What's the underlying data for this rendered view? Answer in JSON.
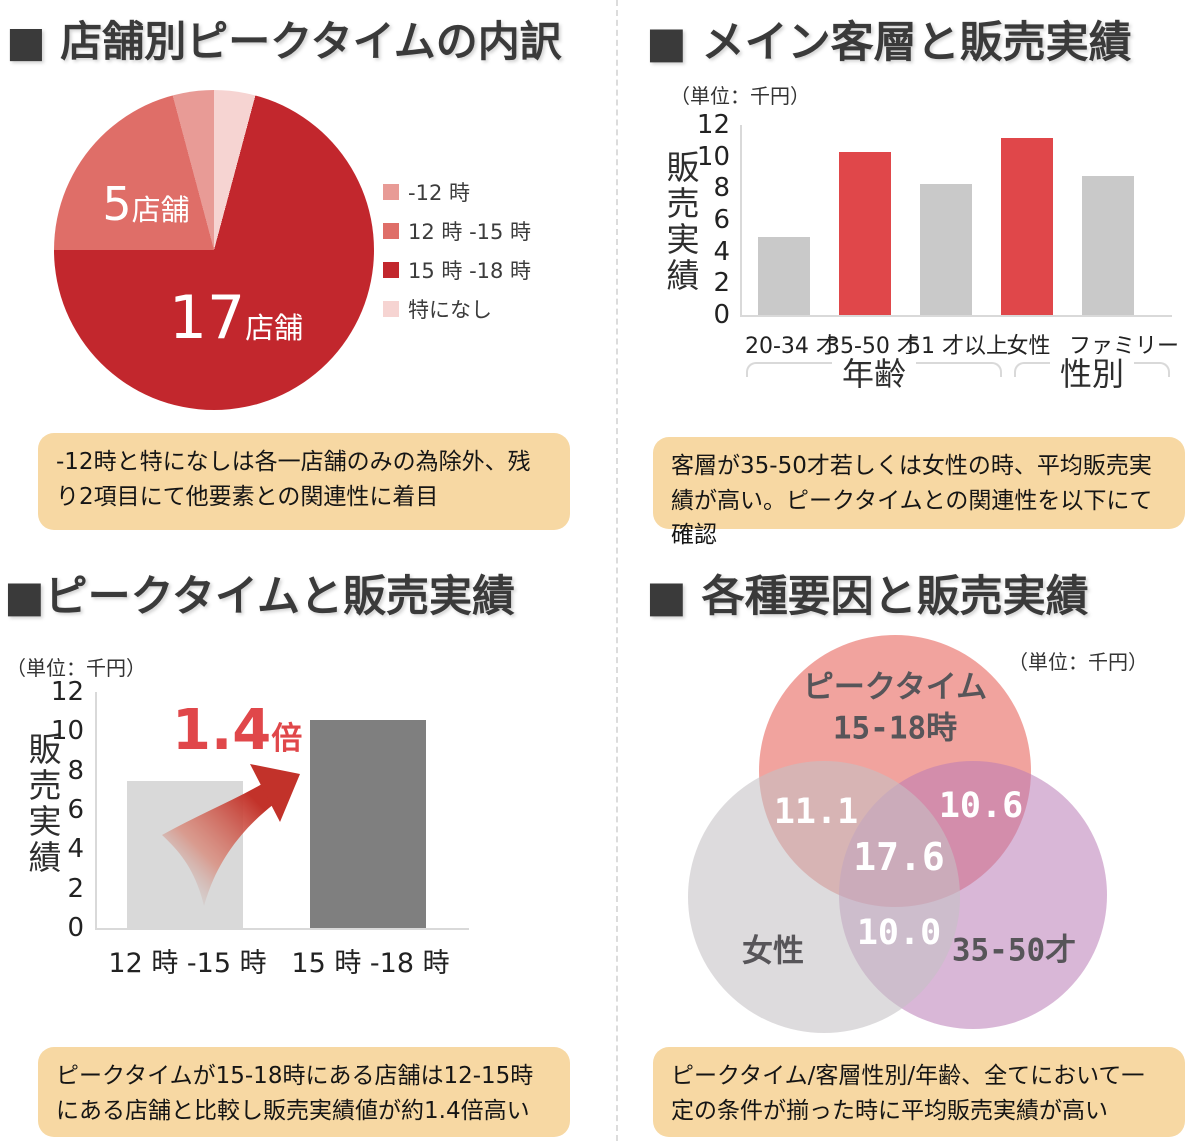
{
  "page": {
    "background": "#ffffff",
    "note_bg": "#f7d8a3",
    "divider_color": "#dcdcdc"
  },
  "chart_data": [
    {
      "type": "pie",
      "title": "■ 店舗別ピークタイムの内訳",
      "slices": [
        {
          "label": "-12 時",
          "value": 1,
          "color": "#e89b96"
        },
        {
          "label": "12 時 -15 時",
          "value": 5,
          "color": "#df6e68"
        },
        {
          "label": "15 時 -18 時",
          "value": 17,
          "color": "#c2272d"
        },
        {
          "label": "特になし",
          "value": 1,
          "color": "#f6d4d2"
        }
      ],
      "legend_position": "right",
      "callouts": [
        {
          "num": "5",
          "suffix": "店舗"
        },
        {
          "num": "17",
          "suffix": "店舗"
        }
      ],
      "note": "-12時と特になしは各一店舗のみの為除外、残り2項目にて他要素との関連性に着目"
    },
    {
      "type": "bar",
      "title": "■ メイン客層と販売実績",
      "unit": "（単位：千円）",
      "ylabel": "販売実績",
      "ylim": [
        0,
        12
      ],
      "yticks": [
        "0",
        "2",
        "4",
        "6",
        "8",
        "10",
        "12"
      ],
      "categories": [
        "20-34 才",
        "35-50 才",
        "51 才以上",
        "女性",
        "ファミリー"
      ],
      "values": [
        4.9,
        10.3,
        8.3,
        11.2,
        8.8
      ],
      "colors": [
        "#c9c9c9",
        "#e0474a",
        "#c9c9c9",
        "#e0474a",
        "#c9c9c9"
      ],
      "groups": [
        {
          "label": "年齢"
        },
        {
          "label": "性別"
        }
      ],
      "grid": false,
      "note": "客層が35-50才若しくは女性の時、平均販売実績が高い。ピークタイムとの関連性を以下にて確認"
    },
    {
      "type": "bar",
      "title": "■ピークタイムと販売実績",
      "unit": "（単位：千円）",
      "ylabel": "販売実績",
      "ylim": [
        0,
        12
      ],
      "yticks": [
        "0",
        "2",
        "4",
        "6",
        "8",
        "10",
        "12"
      ],
      "categories": [
        "12 時 -15 時",
        "15 時 -18 時"
      ],
      "values": [
        7.5,
        10.6
      ],
      "colors": [
        "#d9d9d9",
        "#7f7f7f"
      ],
      "annotation": {
        "num": "1.4",
        "suffix": "倍",
        "color": "#e0474a"
      },
      "grid": false,
      "note": "ピークタイムが15-18時にある店舗は12-15時にある店舗と比較し販売実績値が約1.4倍高い"
    },
    {
      "type": "venn",
      "title": "■ 各種要因と販売実績",
      "unit": "（単位：千円）",
      "sets": [
        {
          "label_line1": "ピークタイム",
          "label_line2": "15-18時",
          "color": "rgba(236,128,120,0.72)"
        },
        {
          "label": "女性",
          "color": "rgba(197,193,197,0.58)"
        },
        {
          "label": "35-50才",
          "color": "rgba(186,124,182,0.55)"
        }
      ],
      "intersections": {
        "peak_female": "11.1",
        "peak_age": "10.6",
        "all": "17.6",
        "female_age": "10.0"
      },
      "note": "ピークタイム/客層性別/年齢、全てにおいて一定の条件が揃った時に平均販売実績が高い"
    }
  ]
}
